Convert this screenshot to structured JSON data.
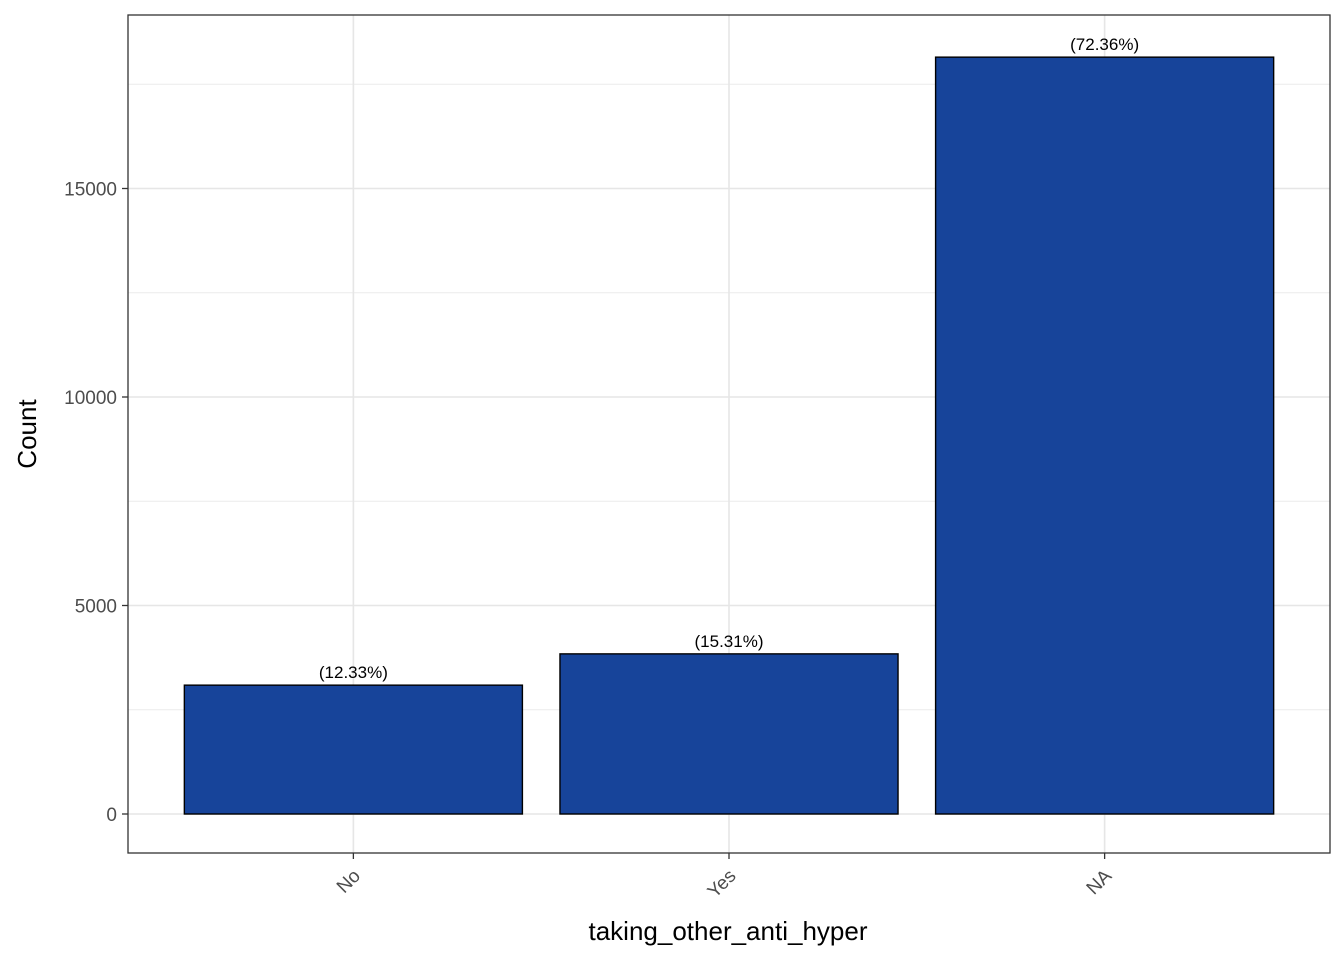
{
  "chart_data": {
    "type": "bar",
    "categories": [
      "No",
      "Yes",
      "NA"
    ],
    "values": [
      3090,
      3840,
      18150
    ],
    "labels": [
      "(12.33%)",
      "(15.31%)",
      "(72.36%)"
    ],
    "xlabel": "taking_other_anti_hyper",
    "ylabel": "Count",
    "ylim": [
      -900,
      19000
    ],
    "yticks": [
      0,
      5000,
      10000,
      15000
    ],
    "ytick_labels": [
      "0",
      "5000",
      "10000",
      "15000"
    ],
    "grid": true,
    "bar_color": "#17449A",
    "bar_outline": "#000000",
    "theme": "bw"
  }
}
